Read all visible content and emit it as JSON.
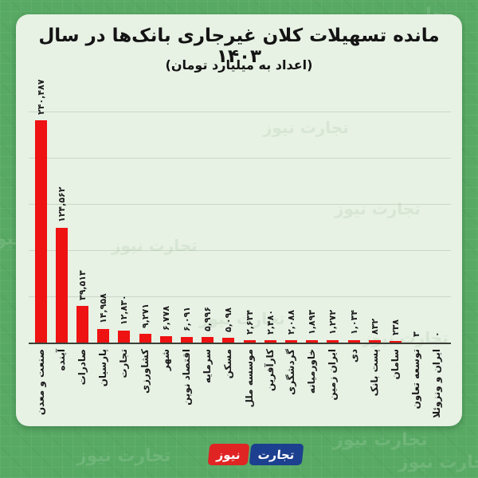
{
  "title": "مانده تسهیلات کلان غیرجاری بانک‌ها در سال ۱۴۰۳",
  "subtitle": "(اعداد به میلیارد تومان)",
  "watermark": "تجارت نیوز",
  "logo": {
    "name_part": "تجارت",
    "news_part": "نیوز"
  },
  "colors": {
    "background": "#58a964",
    "panel": "#e7f1e4",
    "bar": "#ee1212",
    "axis": "#3c4038",
    "grid": "#b9c9b4",
    "ink": "#141414",
    "logo_blue": "#1c3f8f",
    "logo_red": "#e02424"
  },
  "chart_data": {
    "type": "bar",
    "title": "مانده تسهیلات کلان غیرجاری بانک‌ها در سال ۱۴۰۳",
    "subtitle": "(اعداد به میلیارد تومان)",
    "unit": "میلیارد تومان",
    "categories": [
      "صنعت و معدن",
      "آینده",
      "صادرات",
      "پارسیان",
      "تجارت",
      "کشاورزی",
      "شهر",
      "اقتصاد نوین",
      "سرمایه",
      "مسکن",
      "موسسه ملل",
      "کارآفرین",
      "گردشگری",
      "خاورمیانه",
      "ایران زمین",
      "دی",
      "پست بانک",
      "سامان",
      "توسعه تعاون",
      "ایران و ونزوئلا"
    ],
    "values": [
      240487,
      124562,
      39513,
      14958,
      12830,
      9271,
      6778,
      6091,
      5996,
      5098,
      2634,
      2480,
      2088,
      1893,
      1272,
      1034,
      832,
      238,
      3,
      0
    ],
    "value_labels": [
      "۲۴۰,۴۸۷",
      "۱۲۴,۵۶۲",
      "۳۹,۵۱۳",
      "۱۴,۹۵۸",
      "۱۲,۸۳۰",
      "۹,۲۷۱",
      "۶,۷۷۸",
      "۶,۰۹۱",
      "۵,۹۹۶",
      "۵,۰۹۸",
      "۲,۶۳۴",
      "۲,۴۸۰",
      "۲,۰۸۸",
      "۱,۸۹۳",
      "۱,۲۷۲",
      "۱,۰۳۴",
      "۸۳۲",
      "۲۳۸",
      "۳",
      "۰"
    ],
    "bar_color": "#ee1212",
    "ylim": [
      0,
      250000
    ],
    "grid": "horizontal, 5 unlabeled gridlines, no y-axis labels",
    "legend": "none",
    "label_style": "values and category names rotated 90° (read bottom-to-top), Persian digits",
    "order": "sorted descending, right-to-left infographic layout"
  }
}
